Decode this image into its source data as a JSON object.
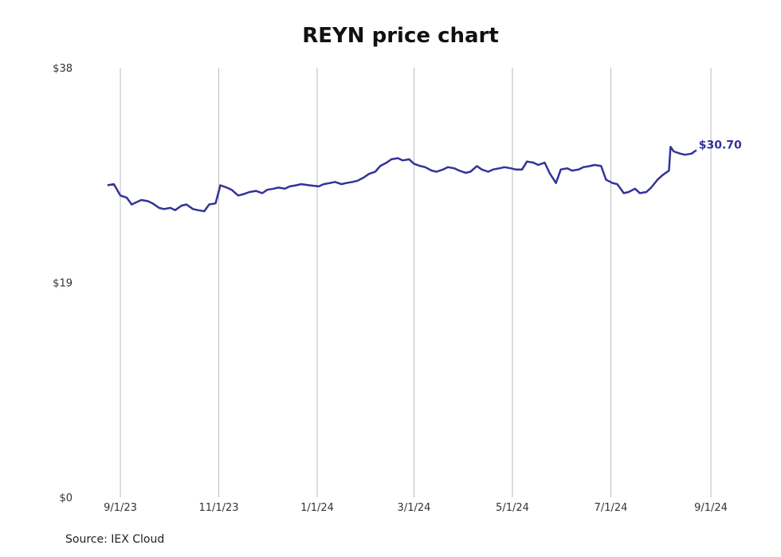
{
  "chart_data": {
    "type": "line",
    "title": "REYN price chart",
    "source": "Source: IEX Cloud",
    "xlabel": "",
    "ylabel": "",
    "ylim": [
      0,
      38
    ],
    "y_ticks": [
      {
        "value": 0,
        "label": "$0"
      },
      {
        "value": 19,
        "label": "$19"
      },
      {
        "value": 38,
        "label": "$38"
      }
    ],
    "x_ticks": [
      "2023-09-01",
      "2023-11-01",
      "2024-01-01",
      "2024-03-01",
      "2024-05-01",
      "2024-07-01",
      "2024-09-01"
    ],
    "x_tick_labels": [
      "9/1/23",
      "11/1/23",
      "1/1/24",
      "3/1/24",
      "5/1/24",
      "7/1/24",
      "9/1/24"
    ],
    "xlim": [
      "2023-08-24",
      "2024-09-01"
    ],
    "grid": "vertical",
    "line_color": "#333399",
    "last_label": "$30.70",
    "series": [
      {
        "x": [
          "2023-08-24",
          "2023-08-28",
          "2023-08-30",
          "2023-09-01",
          "2023-09-05",
          "2023-09-08",
          "2023-09-11",
          "2023-09-14",
          "2023-09-18",
          "2023-09-21",
          "2023-09-25",
          "2023-09-28",
          "2023-10-02",
          "2023-10-05",
          "2023-10-09",
          "2023-10-12",
          "2023-10-16",
          "2023-10-19",
          "2023-10-23",
          "2023-10-26",
          "2023-10-30",
          "2023-11-02",
          "2023-11-06",
          "2023-11-09",
          "2023-11-13",
          "2023-11-16",
          "2023-11-20",
          "2023-11-24",
          "2023-11-28",
          "2023-12-01",
          "2023-12-05",
          "2023-12-08",
          "2023-12-12",
          "2023-12-15",
          "2023-12-19",
          "2023-12-22",
          "2023-12-27",
          "2024-01-02",
          "2024-01-05",
          "2024-01-09",
          "2024-01-12",
          "2024-01-16",
          "2024-01-19",
          "2024-01-23",
          "2024-01-26",
          "2024-01-30",
          "2024-02-02",
          "2024-02-06",
          "2024-02-09",
          "2024-02-13",
          "2024-02-16",
          "2024-02-20",
          "2024-02-23",
          "2024-02-27",
          "2024-03-01",
          "2024-03-05",
          "2024-03-08",
          "2024-03-12",
          "2024-03-15",
          "2024-03-19",
          "2024-03-22",
          "2024-03-26",
          "2024-03-29",
          "2024-04-02",
          "2024-04-05",
          "2024-04-09",
          "2024-04-12",
          "2024-04-16",
          "2024-04-19",
          "2024-04-23",
          "2024-04-26",
          "2024-04-30",
          "2024-05-03",
          "2024-05-07",
          "2024-05-10",
          "2024-05-14",
          "2024-05-17",
          "2024-05-21",
          "2024-05-24",
          "2024-05-28",
          "2024-05-31",
          "2024-06-04",
          "2024-06-07",
          "2024-06-11",
          "2024-06-14",
          "2024-06-18",
          "2024-06-21",
          "2024-06-25",
          "2024-06-28",
          "2024-07-02",
          "2024-07-05",
          "2024-07-09",
          "2024-07-12",
          "2024-07-16",
          "2024-07-19",
          "2024-07-23",
          "2024-07-26",
          "2024-07-30",
          "2024-08-02",
          "2024-08-06",
          "2024-08-07",
          "2024-08-09",
          "2024-08-13",
          "2024-08-16",
          "2024-08-20",
          "2024-08-23"
        ],
        "y": [
          27.6,
          27.7,
          27.2,
          26.7,
          26.5,
          25.9,
          26.1,
          26.3,
          26.2,
          26.0,
          25.6,
          25.5,
          25.6,
          25.4,
          25.8,
          25.9,
          25.5,
          25.4,
          25.3,
          25.9,
          26.0,
          27.6,
          27.4,
          27.2,
          26.7,
          26.8,
          27.0,
          27.1,
          26.9,
          27.2,
          27.3,
          27.4,
          27.3,
          27.5,
          27.6,
          27.7,
          27.6,
          27.5,
          27.7,
          27.8,
          27.9,
          27.7,
          27.8,
          27.9,
          28.0,
          28.3,
          28.6,
          28.8,
          29.3,
          29.6,
          29.9,
          30.0,
          29.8,
          29.9,
          29.5,
          29.3,
          29.2,
          28.9,
          28.8,
          29.0,
          29.2,
          29.1,
          28.9,
          28.7,
          28.8,
          29.3,
          29.0,
          28.8,
          29.0,
          29.1,
          29.2,
          29.1,
          29.0,
          29.0,
          29.7,
          29.6,
          29.4,
          29.6,
          28.7,
          27.8,
          29.0,
          29.1,
          28.9,
          29.0,
          29.2,
          29.3,
          29.4,
          29.3,
          28.1,
          27.8,
          27.7,
          26.9,
          27.0,
          27.3,
          26.9,
          27.0,
          27.4,
          28.1,
          28.5,
          28.9,
          31.0,
          30.6,
          30.4,
          30.3,
          30.4,
          30.7
        ]
      }
    ]
  }
}
